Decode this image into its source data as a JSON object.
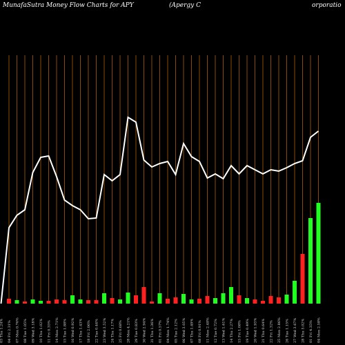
{
  "chart_data": {
    "type": "moneyflow",
    "title": "MunafaSutra  Money Flow  Charts for APY",
    "title_parts": [
      "(Apergy C",
      "orporatio"
    ],
    "categories": [
      "03 Thu 1.24%",
      "04 Fri 2.31%",
      "07 Mon 0.76%",
      "08 Tue 1.05%",
      "09 Wed 3.18%",
      "10 Thu 1.02%",
      "11 Fri 0.35%",
      "14 Mon 2.71%",
      "15 Tue 1.88%",
      "16 Wed 0.92%",
      "17 Thu 1.43%",
      "18 Fri 2.06%",
      "22 Tue 0.44%",
      "23 Wed 3.52%",
      "24 Thu 1.17%",
      "25 Fri 0.68%",
      "28 Mon 4.21%",
      "29 Tue 0.83%",
      "30 Wed 2.94%",
      "31 Thu 1.36%",
      "01 Fri 0.57%",
      "04 Mon 1.74%",
      "05 Tue 2.12%",
      "06 Wed 3.05%",
      "07 Thu 1.49%",
      "08 Fri 0.91%",
      "11 Mon 2.48%",
      "12 Tue 0.72%",
      "13 Wed 1.61%",
      "14 Thu 2.27%",
      "15 Fri 1.08%",
      "19 Tue 0.49%",
      "20 Wed 1.93%",
      "21 Thu 0.64%",
      "22 Fri 1.32%",
      "25 Mon 2.86%",
      "26 Tue 1.15%",
      "27 Wed 3.67%",
      "28 Thu 5.02%",
      "01 Fri 4.35%",
      "04 Mon 2.58%"
    ],
    "line": {
      "color": "#ffffff",
      "values": [
        20,
        130,
        148,
        156,
        210,
        232,
        234,
        204,
        170,
        162,
        156,
        143,
        144,
        207,
        198,
        207,
        290,
        283,
        228,
        218,
        223,
        226,
        207,
        252,
        233,
        226,
        202,
        208,
        201,
        220,
        208,
        220,
        214,
        208,
        214,
        212,
        217,
        223,
        227,
        261,
        270
      ]
    },
    "bars": {
      "values": [
        null,
        7,
        5,
        3,
        6,
        4,
        4,
        6,
        5,
        12,
        6,
        5,
        5,
        15,
        8,
        6,
        16,
        12,
        24,
        3,
        15,
        7,
        9,
        14,
        6,
        7,
        11,
        8,
        15,
        24,
        12,
        8,
        6,
        4,
        11,
        9,
        13,
        33,
        72,
        124,
        146
      ],
      "colors": [
        null,
        "#ff2020",
        "#20ff20",
        "#ff2020",
        "#20ff20",
        "#20ff20",
        "#ff2020",
        "#ff2020",
        "#ff2020",
        "#20ff20",
        "#20ff20",
        "#ff2020",
        "#ff2020",
        "#20ff20",
        "#ff2020",
        "#20ff20",
        "#20ff20",
        "#ff2020",
        "#ff2020",
        "#ff2020",
        "#20ff20",
        "#ff2020",
        "#ff2020",
        "#20ff20",
        "#20ff20",
        "#ff2020",
        "#ff2020",
        "#20ff20",
        "#20ff20",
        "#20ff20",
        "#ff2020",
        "#20ff20",
        "#ff2020",
        "#ff2020",
        "#ff2020",
        "#ff2020",
        "#20ff20",
        "#20ff20",
        "#ff2020",
        "#20ff20",
        "#20ff20"
      ]
    },
    "ylim": [
      0,
      380
    ],
    "grid_color": "#b06000"
  }
}
